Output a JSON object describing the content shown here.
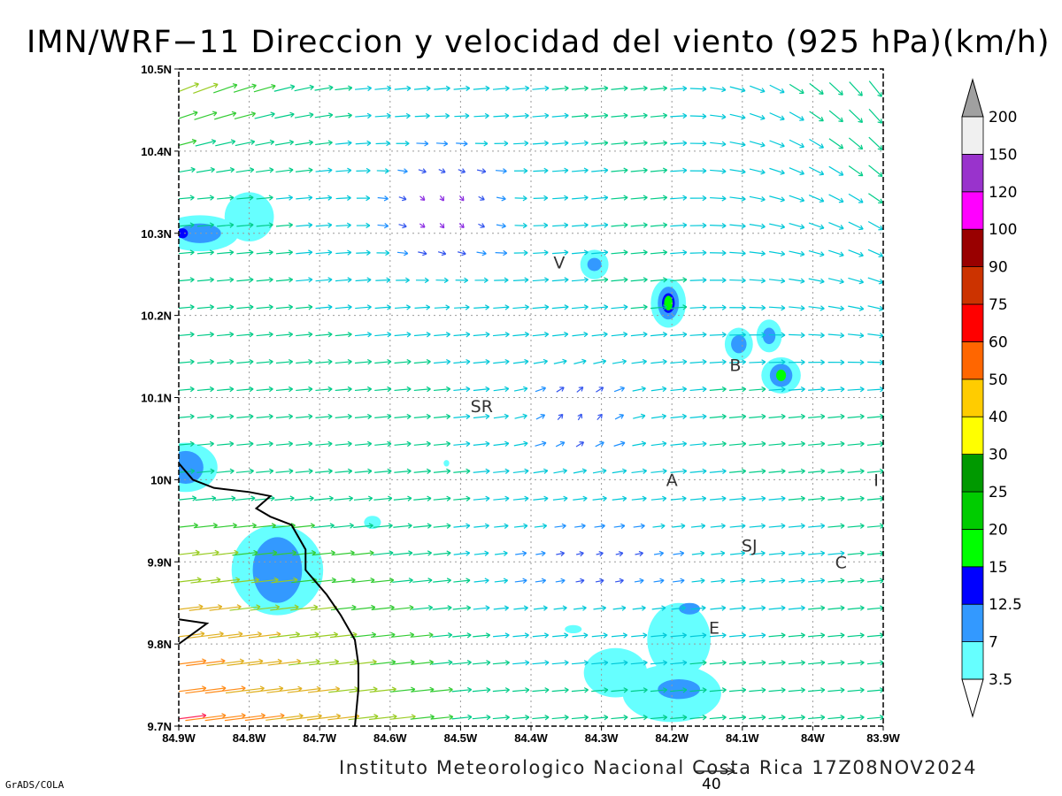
{
  "title": "IMN/WRF−11 Direccion y velocidad del viento (925 hPa)(km/h)",
  "footer": "Instituto Meteorologico Nacional Costa Rica 17Z08NOV2024",
  "software_label": "GrADS/COLA",
  "reference_vector": {
    "label": "40",
    "speed_kmh": 40
  },
  "map": {
    "lon_range": [
      -84.9,
      -83.9
    ],
    "lat_range": [
      9.7,
      10.5
    ],
    "lon_ticks": [
      {
        "value": -84.9,
        "label": "84.9W"
      },
      {
        "value": -84.8,
        "label": "84.8W"
      },
      {
        "value": -84.7,
        "label": "84.7W"
      },
      {
        "value": -84.6,
        "label": "84.6W"
      },
      {
        "value": -84.5,
        "label": "84.5W"
      },
      {
        "value": -84.4,
        "label": "84.4W"
      },
      {
        "value": -84.3,
        "label": "84.3W"
      },
      {
        "value": -84.2,
        "label": "84.2W"
      },
      {
        "value": -84.1,
        "label": "84.1W"
      },
      {
        "value": -84.0,
        "label": "84W"
      },
      {
        "value": -83.9,
        "label": "83.9W"
      }
    ],
    "lat_ticks": [
      {
        "value": 9.7,
        "label": "9.7N"
      },
      {
        "value": 9.8,
        "label": "9.8N"
      },
      {
        "value": 9.9,
        "label": "9.9N"
      },
      {
        "value": 10.0,
        "label": "10N"
      },
      {
        "value": 10.1,
        "label": "10.1N"
      },
      {
        "value": 10.2,
        "label": "10.2N"
      },
      {
        "value": 10.3,
        "label": "10.3N"
      },
      {
        "value": 10.4,
        "label": "10.4N"
      },
      {
        "value": 10.5,
        "label": "10.5N"
      }
    ],
    "places": [
      {
        "label": "V",
        "lon": -84.36,
        "lat": 10.265
      },
      {
        "label": "SR",
        "lon": -84.47,
        "lat": 10.09
      },
      {
        "label": "B",
        "lon": -84.11,
        "lat": 10.14
      },
      {
        "label": "A",
        "lon": -84.2,
        "lat": 10.0
      },
      {
        "label": "I",
        "lon": -83.91,
        "lat": 10.0
      },
      {
        "label": "SJ",
        "lon": -84.09,
        "lat": 9.92
      },
      {
        "label": "C",
        "lon": -83.96,
        "lat": 9.9
      },
      {
        "label": "E",
        "lon": -84.14,
        "lat": 9.82
      }
    ],
    "coastline": [
      [
        -84.9,
        10.02
      ],
      [
        -84.88,
        10.0
      ],
      [
        -84.85,
        9.99
      ],
      [
        -84.8,
        9.985
      ],
      [
        -84.77,
        9.98
      ],
      [
        -84.79,
        9.965
      ],
      [
        -84.77,
        9.955
      ],
      [
        -84.74,
        9.945
      ],
      [
        -84.72,
        9.915
      ],
      [
        -84.72,
        9.89
      ],
      [
        -84.69,
        9.86
      ],
      [
        -84.67,
        9.835
      ],
      [
        -84.65,
        9.805
      ],
      [
        -84.645,
        9.775
      ],
      [
        -84.645,
        9.745
      ],
      [
        -84.65,
        9.7
      ]
    ],
    "coast_fragment": [
      [
        -84.9,
        9.8
      ],
      [
        -84.86,
        9.825
      ],
      [
        -84.9,
        9.83
      ]
    ],
    "speed_blobs": [
      {
        "lon": -84.87,
        "lat": 10.3,
        "r_lon": 0.055,
        "r_lat": 0.022,
        "level": 3.5
      },
      {
        "lon": -84.8,
        "lat": 10.32,
        "r_lon": 0.035,
        "r_lat": 0.03,
        "level": 3.5
      },
      {
        "lon": -84.87,
        "lat": 10.3,
        "r_lon": 0.03,
        "r_lat": 0.012,
        "level": 7
      },
      {
        "lon": -84.895,
        "lat": 10.3,
        "r_lon": 0.008,
        "r_lat": 0.006,
        "level": 12.5
      },
      {
        "lon": -84.89,
        "lat": 10.015,
        "r_lon": 0.045,
        "r_lat": 0.03,
        "level": 3.5
      },
      {
        "lon": -84.89,
        "lat": 10.015,
        "r_lon": 0.025,
        "r_lat": 0.02,
        "level": 7
      },
      {
        "lon": -84.76,
        "lat": 9.89,
        "r_lon": 0.065,
        "r_lat": 0.055,
        "level": 3.5
      },
      {
        "lon": -84.76,
        "lat": 9.89,
        "r_lon": 0.035,
        "r_lat": 0.04,
        "level": 7
      },
      {
        "lon": -84.625,
        "lat": 9.948,
        "r_lon": 0.012,
        "r_lat": 0.008,
        "level": 3.5
      },
      {
        "lon": -84.31,
        "lat": 10.262,
        "r_lon": 0.02,
        "r_lat": 0.018,
        "level": 3.5
      },
      {
        "lon": -84.31,
        "lat": 10.262,
        "r_lon": 0.01,
        "r_lat": 0.008,
        "level": 7
      },
      {
        "lon": -84.205,
        "lat": 10.215,
        "r_lon": 0.025,
        "r_lat": 0.03,
        "level": 3.5
      },
      {
        "lon": -84.205,
        "lat": 10.215,
        "r_lon": 0.015,
        "r_lat": 0.02,
        "level": 7
      },
      {
        "lon": -84.205,
        "lat": 10.215,
        "r_lon": 0.009,
        "r_lat": 0.012,
        "level": 12.5
      },
      {
        "lon": -84.205,
        "lat": 10.215,
        "r_lon": 0.006,
        "r_lat": 0.009,
        "level": 15
      },
      {
        "lon": -84.105,
        "lat": 10.165,
        "r_lon": 0.02,
        "r_lat": 0.02,
        "level": 3.5
      },
      {
        "lon": -84.105,
        "lat": 10.165,
        "r_lon": 0.011,
        "r_lat": 0.011,
        "level": 7
      },
      {
        "lon": -84.062,
        "lat": 10.175,
        "r_lon": 0.018,
        "r_lat": 0.02,
        "level": 3.5
      },
      {
        "lon": -84.062,
        "lat": 10.175,
        "r_lon": 0.009,
        "r_lat": 0.01,
        "level": 7
      },
      {
        "lon": -84.045,
        "lat": 10.127,
        "r_lon": 0.028,
        "r_lat": 0.022,
        "level": 3.5
      },
      {
        "lon": -84.045,
        "lat": 10.127,
        "r_lon": 0.016,
        "r_lat": 0.014,
        "level": 7
      },
      {
        "lon": -84.045,
        "lat": 10.127,
        "r_lon": 0.007,
        "r_lat": 0.007,
        "level": 15
      },
      {
        "lon": -84.28,
        "lat": 9.765,
        "r_lon": 0.045,
        "r_lat": 0.03,
        "level": 3.5
      },
      {
        "lon": -84.2,
        "lat": 9.74,
        "r_lon": 0.07,
        "r_lat": 0.035,
        "level": 3.5
      },
      {
        "lon": -84.19,
        "lat": 9.805,
        "r_lon": 0.045,
        "r_lat": 0.045,
        "level": 3.5
      },
      {
        "lon": -84.19,
        "lat": 9.745,
        "r_lon": 0.03,
        "r_lat": 0.012,
        "level": 7
      },
      {
        "lon": -84.175,
        "lat": 9.843,
        "r_lon": 0.015,
        "r_lat": 0.007,
        "level": 7
      },
      {
        "lon": -84.34,
        "lat": 9.818,
        "r_lon": 0.012,
        "r_lat": 0.005,
        "level": 3.5
      },
      {
        "lon": -84.52,
        "lat": 10.02,
        "r_lon": 0.004,
        "r_lat": 0.004,
        "level": 3.5
      }
    ]
  },
  "colorbar": {
    "levels": [
      {
        "label": "3.5",
        "color": "#66ffff"
      },
      {
        "label": "7",
        "color": "#3399ff"
      },
      {
        "label": "12.5",
        "color": "#0000ff"
      },
      {
        "label": "15",
        "color": "#00ff00"
      },
      {
        "label": "20",
        "color": "#00cc00"
      },
      {
        "label": "25",
        "color": "#009900"
      },
      {
        "label": "30",
        "color": "#ffff00"
      },
      {
        "label": "40",
        "color": "#ffcc00"
      },
      {
        "label": "50",
        "color": "#ff6600"
      },
      {
        "label": "60",
        "color": "#ff0000"
      },
      {
        "label": "75",
        "color": "#cc3300"
      },
      {
        "label": "90",
        "color": "#990000"
      },
      {
        "label": "100",
        "color": "#ff00ff"
      },
      {
        "label": "120",
        "color": "#9933cc"
      },
      {
        "label": "150",
        "color": "#f0f0f0"
      },
      {
        "label": "200",
        "color": "#a0a0a0"
      }
    ],
    "under_color": "#ffffff",
    "over_color": "#a0a0a0"
  }
}
